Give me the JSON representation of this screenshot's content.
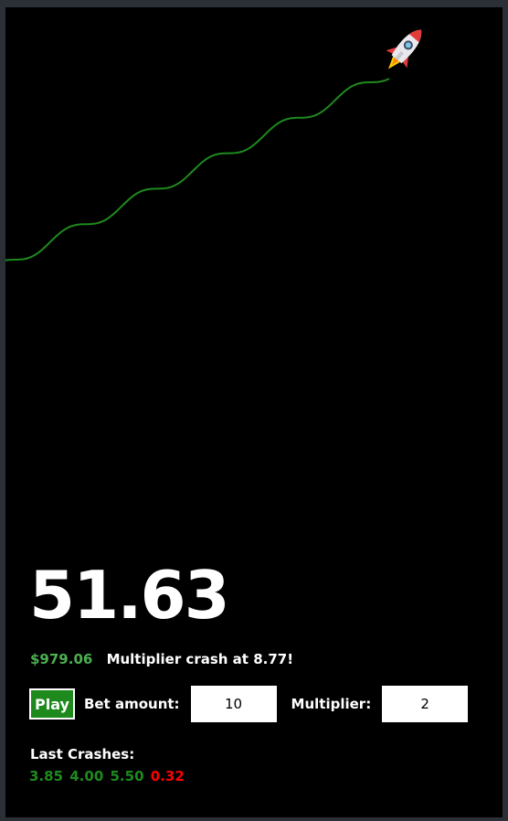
{
  "game": {
    "current_multiplier": "51.63",
    "balance": "$979.06",
    "crash_message": "Multiplier crash at 8.77!",
    "play_label": "Play",
    "bet_label": "Bet amount:",
    "bet_value": "10",
    "multiplier_label": "Multiplier:",
    "multiplier_value": "2",
    "last_crashes_title": "Last Crashes:",
    "last_crashes": [
      {
        "value": "3.85",
        "color": "#1e8a1e"
      },
      {
        "value": "4.00",
        "color": "#1e8a1e"
      },
      {
        "value": "5.50",
        "color": "#1e8a1e"
      },
      {
        "value": "0.32",
        "color": "#ff0000"
      }
    ]
  },
  "colors": {
    "background": "#000000",
    "curve": "#1e8a1e",
    "balance": "#4caf50",
    "win": "#1e8a1e",
    "loss": "#ff0000"
  },
  "icons": {
    "rocket": "rocket-icon"
  }
}
